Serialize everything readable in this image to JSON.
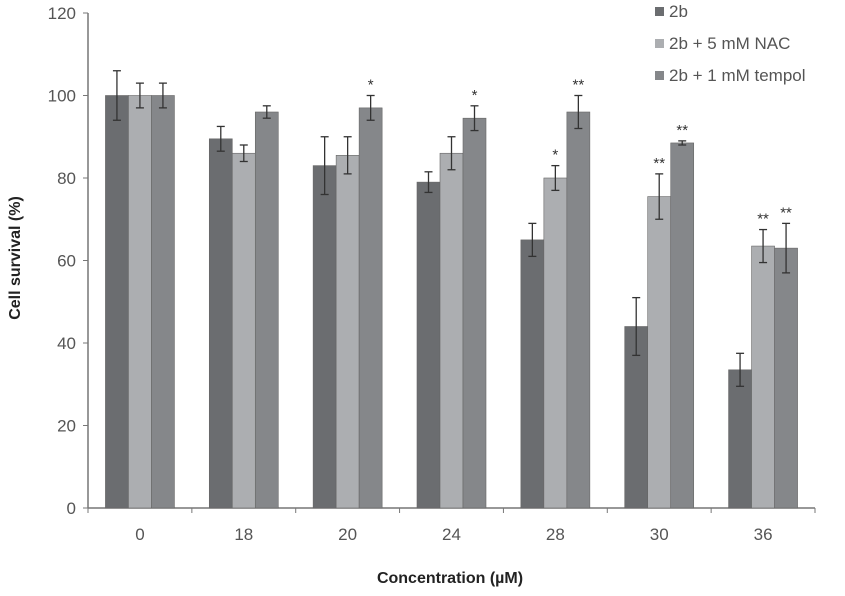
{
  "chart_data": {
    "type": "bar",
    "title": "",
    "xlabel": "Concentration (µM)",
    "ylabel": "Cell survival (%)",
    "ylim": [
      0,
      120
    ],
    "yticks": [
      0,
      20,
      40,
      60,
      80,
      100,
      120
    ],
    "categories": [
      "0",
      "18",
      "20",
      "24",
      "28",
      "30",
      "36"
    ],
    "grid": false,
    "legend_placement": "top-right",
    "series": [
      {
        "name": "2b",
        "color": "#6b6d70",
        "values": [
          100,
          89.5,
          83,
          79,
          65,
          44,
          33.5
        ],
        "errors": [
          6,
          3,
          7,
          2.5,
          4,
          7,
          4
        ],
        "significance": [
          "",
          "",
          "",
          "",
          "",
          "",
          ""
        ]
      },
      {
        "name": "2b + 5 mM  NAC",
        "color": "#acaeb1",
        "values": [
          100,
          86,
          85.5,
          86,
          80,
          75.5,
          63.5
        ],
        "errors": [
          3,
          2,
          4.5,
          4,
          3,
          5.5,
          4
        ],
        "significance": [
          "",
          "",
          "",
          "",
          "*",
          "**",
          "**"
        ]
      },
      {
        "name": "2b + 1 mM  tempol",
        "color": "#85878a",
        "values": [
          100,
          96,
          97,
          94.5,
          96,
          88.5,
          63
        ],
        "errors": [
          3,
          1.5,
          3,
          3,
          4,
          0.5,
          6
        ],
        "significance": [
          "",
          "",
          "*",
          "*",
          "**",
          "**",
          "**"
        ]
      }
    ]
  }
}
